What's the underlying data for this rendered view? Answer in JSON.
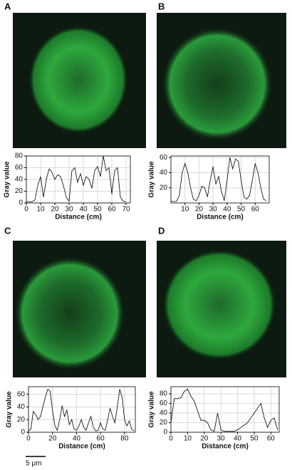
{
  "chart_data": [
    {
      "type": "line",
      "panel_label": "A",
      "xlabel": "Distance (cm)",
      "ylabel": "Gray value",
      "xlim": [
        0,
        73
      ],
      "ylim": [
        0,
        80
      ],
      "xticks": [
        0,
        10,
        20,
        30,
        40,
        50,
        60,
        70
      ],
      "yticks": [
        0,
        20,
        40,
        60,
        80
      ],
      "grid": true,
      "series": [
        {
          "color": "#000000",
          "x": [
            0,
            2,
            4,
            6,
            8,
            10,
            12,
            14,
            16,
            18,
            20,
            22,
            24,
            26,
            28,
            30,
            32,
            34,
            36,
            38,
            40,
            42,
            44,
            46,
            48,
            50,
            52,
            54,
            56,
            58,
            60,
            62,
            64,
            66,
            68,
            70
          ],
          "values": [
            2,
            2,
            2,
            5,
            30,
            45,
            10,
            40,
            58,
            52,
            40,
            48,
            45,
            30,
            10,
            3,
            55,
            60,
            35,
            50,
            30,
            45,
            40,
            25,
            55,
            62,
            45,
            80,
            55,
            60,
            15,
            55,
            60,
            10,
            3,
            2
          ]
        }
      ]
    },
    {
      "type": "line",
      "panel_label": "B",
      "xlabel": "Distance (cm)",
      "ylabel": "Gray value",
      "xlim": [
        0,
        70
      ],
      "ylim": [
        0,
        62
      ],
      "xticks": [
        10,
        20,
        30,
        40,
        50,
        60
      ],
      "yticks": [
        20,
        40,
        60
      ],
      "grid": true,
      "series": [
        {
          "color": "#000000",
          "x": [
            0,
            2,
            4,
            6,
            8,
            10,
            12,
            14,
            16,
            18,
            20,
            22,
            24,
            26,
            28,
            30,
            32,
            34,
            36,
            38,
            40,
            42,
            44,
            46,
            48,
            50,
            52,
            54,
            56,
            58,
            60,
            62,
            64,
            66,
            68
          ],
          "values": [
            2,
            2,
            2,
            10,
            40,
            52,
            40,
            20,
            5,
            3,
            10,
            22,
            20,
            8,
            30,
            48,
            25,
            35,
            15,
            3,
            30,
            60,
            45,
            58,
            55,
            30,
            8,
            5,
            10,
            30,
            52,
            40,
            20,
            5,
            3
          ]
        }
      ]
    },
    {
      "type": "line",
      "panel_label": "C",
      "xlabel": "Distance (cm)",
      "ylabel": "Gray value",
      "xlim": [
        0,
        89
      ],
      "ylim": [
        0,
        72
      ],
      "xticks": [
        0,
        20,
        40,
        60,
        80
      ],
      "yticks": [
        0,
        20,
        40,
        60
      ],
      "grid": true,
      "series": [
        {
          "color": "#000000",
          "x": [
            0,
            2,
            4,
            6,
            8,
            10,
            12,
            14,
            16,
            18,
            20,
            22,
            24,
            26,
            28,
            30,
            32,
            34,
            36,
            38,
            40,
            42,
            44,
            46,
            48,
            50,
            52,
            54,
            56,
            58,
            60,
            62,
            64,
            66,
            68,
            70,
            72,
            74,
            76,
            78,
            80,
            82,
            84,
            86,
            88
          ],
          "values": [
            2,
            5,
            33,
            28,
            20,
            25,
            40,
            55,
            68,
            65,
            35,
            10,
            3,
            20,
            42,
            25,
            35,
            12,
            20,
            5,
            3,
            10,
            20,
            8,
            3,
            15,
            25,
            8,
            2,
            3,
            15,
            5,
            3,
            20,
            38,
            25,
            15,
            40,
            68,
            55,
            20,
            10,
            18,
            5,
            2
          ]
        }
      ]
    },
    {
      "type": "line",
      "panel_label": "D",
      "xlabel": "Distance (cm)",
      "ylabel": "Gray value",
      "xlim": [
        0,
        65
      ],
      "ylim": [
        0,
        95
      ],
      "xticks": [
        0,
        10,
        20,
        30,
        40,
        50,
        60
      ],
      "yticks": [
        0,
        20,
        40,
        60,
        80
      ],
      "grid": true,
      "series": [
        {
          "color": "#000000",
          "x": [
            0,
            2,
            4,
            6,
            8,
            10,
            12,
            14,
            16,
            18,
            20,
            22,
            24,
            26,
            28,
            30,
            32,
            34,
            36,
            38,
            40,
            42,
            44,
            46,
            48,
            50,
            52,
            54,
            56,
            58,
            60,
            62,
            64
          ],
          "values": [
            20,
            70,
            70,
            72,
            85,
            90,
            75,
            65,
            45,
            25,
            25,
            20,
            5,
            2,
            40,
            5,
            2,
            2,
            2,
            2,
            5,
            10,
            15,
            20,
            30,
            40,
            50,
            60,
            30,
            10,
            25,
            30,
            5
          ]
        }
      ]
    }
  ],
  "scale_bar": "5 μm"
}
